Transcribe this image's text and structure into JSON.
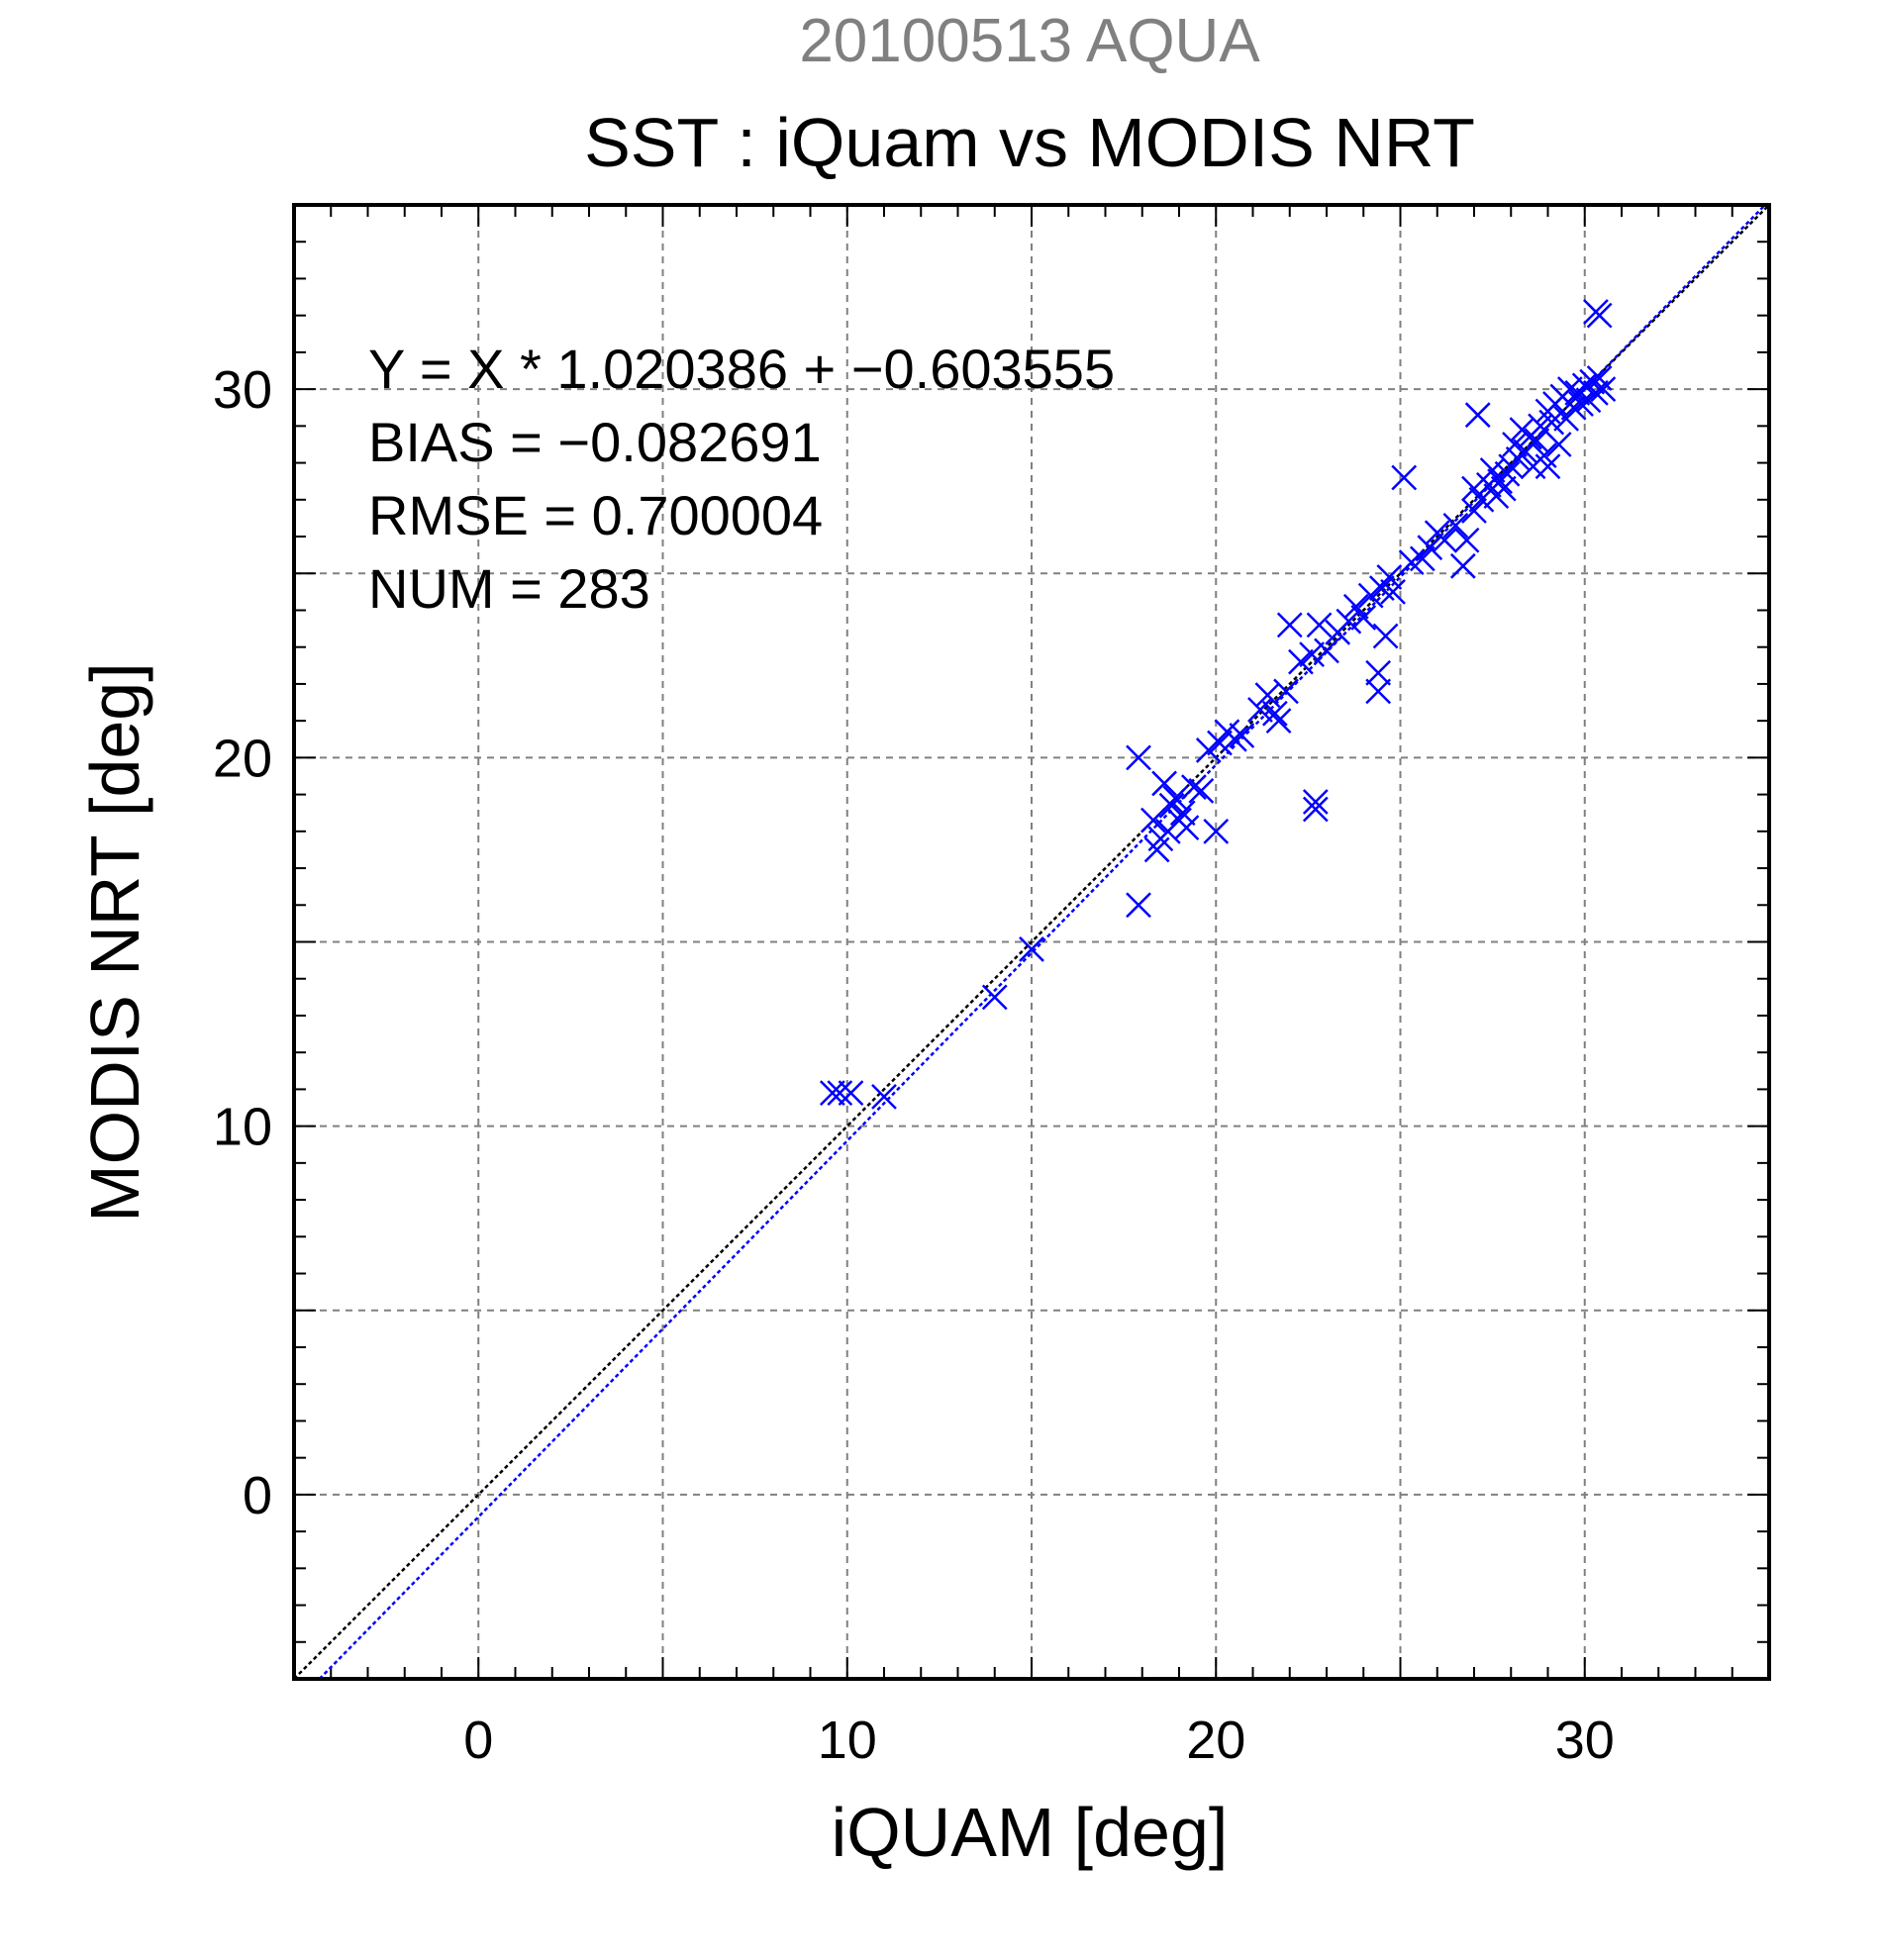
{
  "chart_data": {
    "type": "scatter",
    "supertitle": "20100513 AQUA",
    "title": "SST : iQuam vs MODIS NRT",
    "xlabel": "iQUAM [deg]",
    "ylabel": "MODIS NRT [deg]",
    "xlim": [
      -5,
      35
    ],
    "ylim": [
      -5,
      35
    ],
    "x_ticks": [
      0,
      10,
      20,
      30
    ],
    "y_ticks": [
      0,
      10,
      20,
      30
    ],
    "grid": true,
    "stats_lines": [
      "Y = X * 1.020386 + −0.603555",
      "BIAS = −0.082691",
      "RMSE = 0.700004",
      "NUM = 283"
    ],
    "fit": {
      "slope": 1.020386,
      "intercept": -0.603555
    },
    "colors": {
      "points": "#0000ff",
      "fit_line": "#0000ff",
      "identity_line": "#000000",
      "supertitle": "#808080",
      "grid": "#808080"
    },
    "series": [
      {
        "marker": "x",
        "points": [
          [
            9.6,
            10.9
          ],
          [
            9.8,
            10.9
          ],
          [
            10.1,
            10.9
          ],
          [
            11.0,
            10.8
          ],
          [
            14.0,
            13.5
          ],
          [
            15.0,
            14.8
          ],
          [
            17.9,
            20.0
          ],
          [
            17.9,
            16.0
          ],
          [
            18.3,
            18.3
          ],
          [
            18.4,
            17.5
          ],
          [
            18.5,
            17.8
          ],
          [
            18.6,
            19.3
          ],
          [
            18.7,
            18.0
          ],
          [
            18.8,
            18.7
          ],
          [
            18.9,
            18.9
          ],
          [
            19.0,
            18.3
          ],
          [
            19.1,
            18.5
          ],
          [
            19.2,
            18.1
          ],
          [
            19.4,
            19.2
          ],
          [
            19.6,
            19.1
          ],
          [
            19.8,
            20.2
          ],
          [
            20.0,
            18.0
          ],
          [
            20.1,
            20.4
          ],
          [
            20.3,
            20.7
          ],
          [
            20.5,
            20.5
          ],
          [
            20.7,
            20.6
          ],
          [
            21.2,
            21.3
          ],
          [
            21.4,
            21.7
          ],
          [
            21.6,
            21.2
          ],
          [
            21.7,
            21.0
          ],
          [
            21.9,
            21.8
          ],
          [
            22.0,
            23.6
          ],
          [
            22.3,
            22.6
          ],
          [
            22.6,
            22.8
          ],
          [
            22.7,
            18.8
          ],
          [
            22.7,
            18.6
          ],
          [
            22.8,
            23.6
          ],
          [
            23.0,
            22.9
          ],
          [
            23.3,
            23.4
          ],
          [
            23.6,
            23.7
          ],
          [
            23.8,
            24.1
          ],
          [
            24.0,
            23.8
          ],
          [
            24.2,
            24.4
          ],
          [
            24.4,
            21.8
          ],
          [
            24.4,
            22.3
          ],
          [
            24.5,
            24.6
          ],
          [
            24.6,
            23.3
          ],
          [
            24.7,
            24.9
          ],
          [
            24.8,
            24.5
          ],
          [
            25.1,
            27.6
          ],
          [
            25.3,
            25.3
          ],
          [
            25.6,
            25.4
          ],
          [
            25.8,
            25.7
          ],
          [
            26.0,
            26.1
          ],
          [
            26.2,
            25.9
          ],
          [
            26.5,
            26.3
          ],
          [
            26.7,
            25.2
          ],
          [
            26.8,
            25.9
          ],
          [
            27.0,
            26.7
          ],
          [
            27.0,
            27.3
          ],
          [
            27.1,
            29.3
          ],
          [
            27.2,
            27.0
          ],
          [
            27.4,
            27.4
          ],
          [
            27.5,
            27.8
          ],
          [
            27.6,
            27.1
          ],
          [
            27.7,
            27.5
          ],
          [
            27.8,
            27.3
          ],
          [
            27.9,
            27.7
          ],
          [
            28.0,
            27.9
          ],
          [
            28.1,
            28.5
          ],
          [
            28.2,
            28.1
          ],
          [
            28.3,
            28.9
          ],
          [
            28.4,
            28.3
          ],
          [
            28.5,
            28.7
          ],
          [
            28.6,
            27.9
          ],
          [
            28.7,
            28.6
          ],
          [
            28.8,
            29.0
          ],
          [
            28.9,
            28.2
          ],
          [
            29.0,
            29.4
          ],
          [
            29.0,
            27.9
          ],
          [
            29.1,
            29.1
          ],
          [
            29.2,
            29.6
          ],
          [
            29.3,
            28.5
          ],
          [
            29.4,
            29.8
          ],
          [
            29.5,
            29.2
          ],
          [
            29.6,
            30.0
          ],
          [
            29.7,
            29.5
          ],
          [
            29.8,
            29.9
          ],
          [
            29.9,
            29.6
          ],
          [
            30.0,
            30.1
          ],
          [
            30.1,
            29.7
          ],
          [
            30.2,
            30.2
          ],
          [
            30.3,
            29.9
          ],
          [
            30.4,
            30.3
          ],
          [
            30.5,
            30.0
          ],
          [
            30.4,
            32.0
          ],
          [
            30.3,
            32.1
          ]
        ]
      }
    ]
  }
}
